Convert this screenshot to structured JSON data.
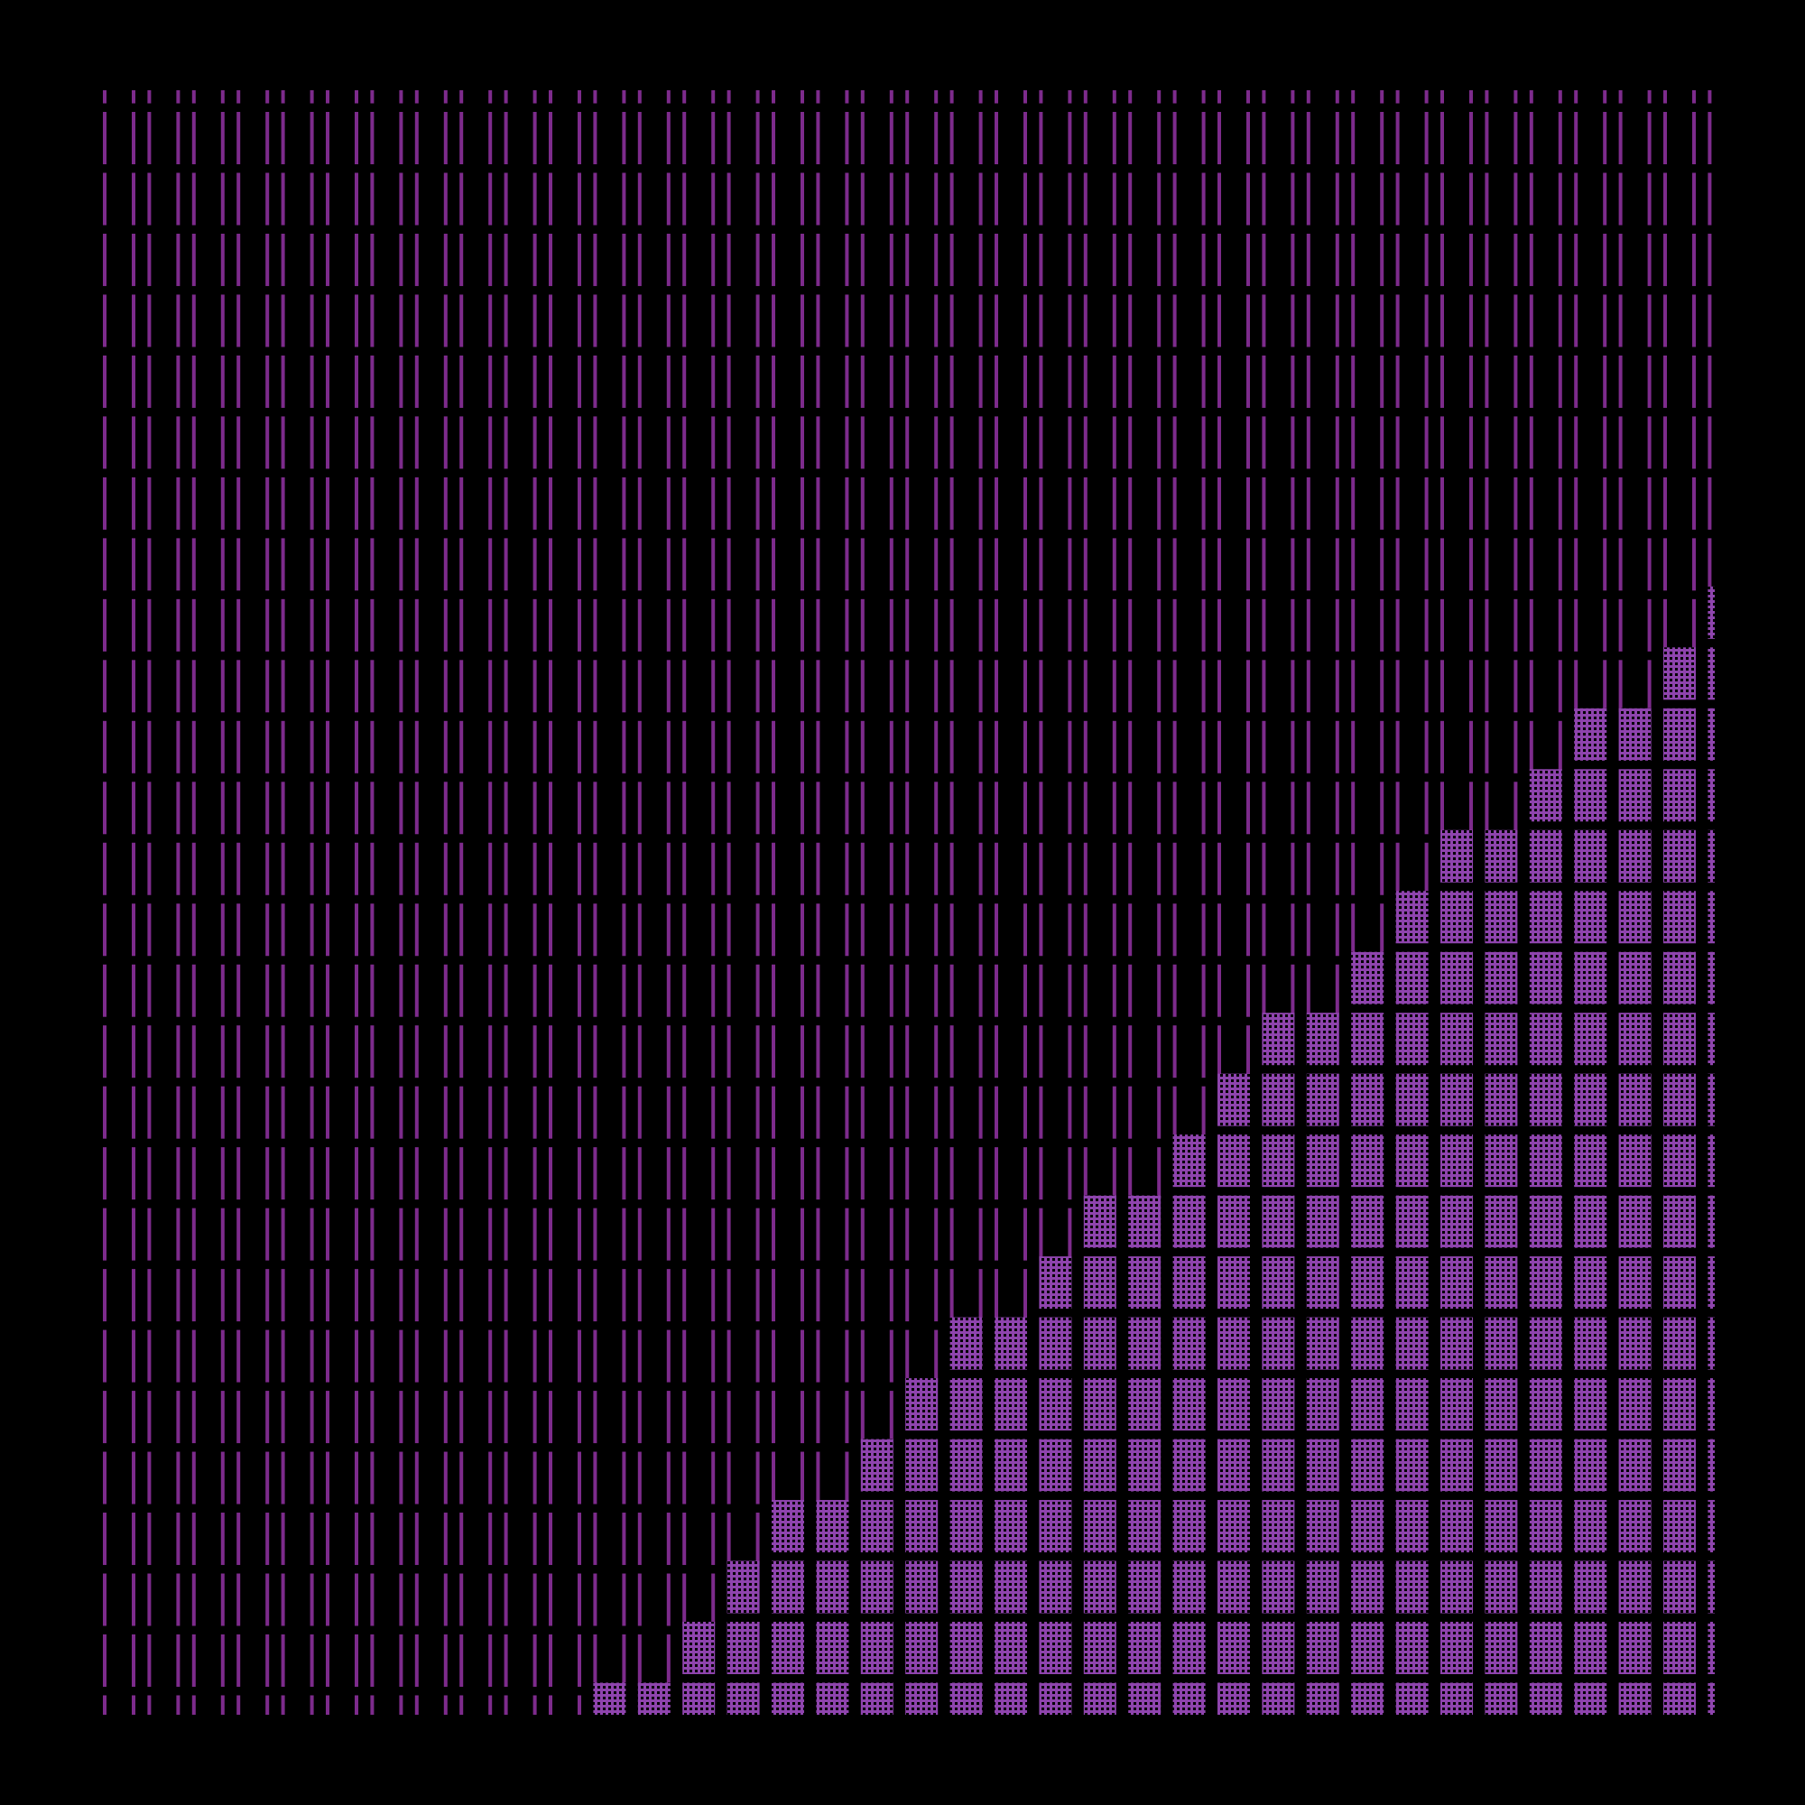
{
  "colors": {
    "background": "#000000",
    "outline": "#7d2b8c",
    "fill": "#8e44ad",
    "dots": "#000000"
  },
  "grid": {
    "columns": 37,
    "rows": 28,
    "filled_rows_per_column": [
      0,
      0,
      0,
      0,
      0,
      0,
      0,
      0,
      0,
      0,
      0,
      1,
      1,
      2,
      3,
      4,
      4,
      5,
      6,
      7,
      7,
      8,
      9,
      9,
      10,
      11,
      12,
      12,
      13,
      14,
      15,
      15,
      16,
      17,
      17,
      18,
      19
    ]
  }
}
